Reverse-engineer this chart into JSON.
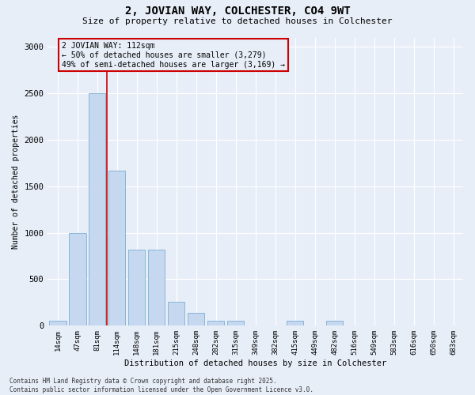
{
  "title_line1": "2, JOVIAN WAY, COLCHESTER, CO4 9WT",
  "title_line2": "Size of property relative to detached houses in Colchester",
  "xlabel": "Distribution of detached houses by size in Colchester",
  "ylabel": "Number of detached properties",
  "bar_labels": [
    "14sqm",
    "47sqm",
    "81sqm",
    "114sqm",
    "148sqm",
    "181sqm",
    "215sqm",
    "248sqm",
    "282sqm",
    "315sqm",
    "349sqm",
    "382sqm",
    "415sqm",
    "449sqm",
    "482sqm",
    "516sqm",
    "549sqm",
    "583sqm",
    "616sqm",
    "650sqm",
    "683sqm"
  ],
  "bar_values": [
    50,
    1000,
    2500,
    1670,
    820,
    820,
    260,
    140,
    50,
    50,
    0,
    0,
    50,
    0,
    50,
    0,
    0,
    0,
    0,
    0,
    0
  ],
  "bar_color": "#c5d8f0",
  "bar_edge_color": "#7bafd4",
  "vline_color": "#cc0000",
  "annotation_text": "2 JOVIAN WAY: 112sqm\n← 50% of detached houses are smaller (3,279)\n49% of semi-detached houses are larger (3,169) →",
  "annotation_box_color": "#cc0000",
  "ylim": [
    0,
    3100
  ],
  "yticks": [
    0,
    500,
    1000,
    1500,
    2000,
    2500,
    3000
  ],
  "footnote": "Contains HM Land Registry data © Crown copyright and database right 2025.\nContains public sector information licensed under the Open Government Licence v3.0.",
  "background_color": "#e8eef8",
  "grid_color": "#ffffff"
}
